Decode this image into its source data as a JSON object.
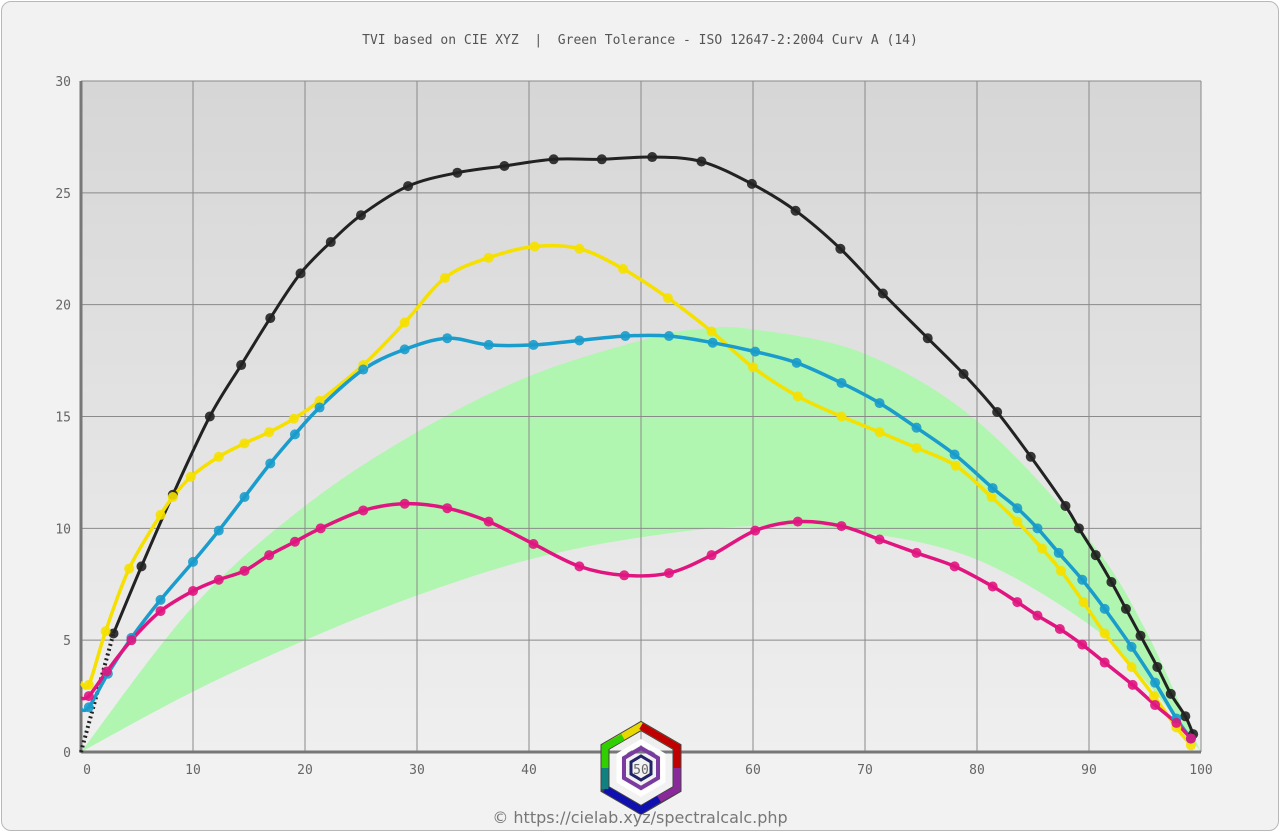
{
  "title": "TVI based on CIE XYZ  |  Green Tolerance - ISO 12647-2:2004 Curv A (14)",
  "credit": "© https://cielab.xyz/spectralcalc.php",
  "logo_text": "50",
  "chart_data": {
    "type": "line",
    "title": "TVI based on CIE XYZ  |  Green Tolerance - ISO 12647-2:2004 Curv A (14)",
    "xlabel": "",
    "ylabel": "",
    "xlim": [
      0,
      100
    ],
    "ylim": [
      0,
      30
    ],
    "xticks": [
      "0",
      "10",
      "20",
      "30",
      "40",
      "50",
      "60",
      "70",
      "80",
      "90",
      "100"
    ],
    "yticks": [
      "0",
      "5",
      "10",
      "15",
      "20",
      "25",
      "30"
    ],
    "grid": true,
    "tolerance_band": {
      "color": "#b0f5b0",
      "upper": [
        [
          0,
          0
        ],
        [
          10,
          6.5
        ],
        [
          20,
          11
        ],
        [
          30,
          14.3
        ],
        [
          40,
          16.8
        ],
        [
          50,
          18.4
        ],
        [
          55,
          18.9
        ],
        [
          60,
          18.9
        ],
        [
          70,
          17.8
        ],
        [
          80,
          14.8
        ],
        [
          90,
          9.5
        ],
        [
          95,
          5.5
        ],
        [
          100,
          0
        ]
      ],
      "lower": [
        [
          0,
          0
        ],
        [
          10,
          2.7
        ],
        [
          20,
          5.0
        ],
        [
          30,
          7.0
        ],
        [
          40,
          8.6
        ],
        [
          50,
          9.6
        ],
        [
          60,
          10.1
        ],
        [
          70,
          9.8
        ],
        [
          80,
          8.6
        ],
        [
          90,
          5.7
        ],
        [
          95,
          3.2
        ],
        [
          100,
          0
        ]
      ]
    },
    "series": [
      {
        "name": "black",
        "color": "#222222",
        "line_start": [
          0,
          0
        ],
        "points": [
          [
            2.9,
            5.3
          ],
          [
            5.4,
            8.3
          ],
          [
            8.2,
            11.5
          ],
          [
            11.5,
            15.0
          ],
          [
            14.3,
            17.3
          ],
          [
            16.9,
            19.4
          ],
          [
            19.6,
            21.4
          ],
          [
            22.3,
            22.8
          ],
          [
            25,
            24.0
          ],
          [
            29.2,
            25.3
          ],
          [
            33.6,
            25.9
          ],
          [
            37.8,
            26.2
          ],
          [
            42.2,
            26.5
          ],
          [
            46.5,
            26.5
          ],
          [
            51,
            26.6
          ],
          [
            55.4,
            26.4
          ],
          [
            59.9,
            25.4
          ],
          [
            63.8,
            24.2
          ],
          [
            67.8,
            22.5
          ],
          [
            71.6,
            20.5
          ],
          [
            75.6,
            18.5
          ],
          [
            78.8,
            16.9
          ],
          [
            81.8,
            15.2
          ],
          [
            84.8,
            13.2
          ],
          [
            87.9,
            11.0
          ],
          [
            89.1,
            10.0
          ],
          [
            90.6,
            8.8
          ],
          [
            92,
            7.6
          ],
          [
            93.3,
            6.4
          ],
          [
            94.6,
            5.2
          ],
          [
            96.1,
            3.8
          ],
          [
            97.3,
            2.6
          ],
          [
            98.6,
            1.6
          ],
          [
            99.3,
            0.8
          ]
        ]
      },
      {
        "name": "yellow",
        "color": "#f5e000",
        "line_start": [
          0,
          3.1
        ],
        "points": [
          [
            0.7,
            3.0
          ],
          [
            2.2,
            5.4
          ],
          [
            4.3,
            8.2
          ],
          [
            7.1,
            10.6
          ],
          [
            8.2,
            11.4
          ],
          [
            9.8,
            12.3
          ],
          [
            12.3,
            13.2
          ],
          [
            14.6,
            13.8
          ],
          [
            16.8,
            14.3
          ],
          [
            19,
            14.9
          ],
          [
            21.3,
            15.7
          ],
          [
            25.2,
            17.3
          ],
          [
            28.9,
            19.2
          ],
          [
            32.5,
            21.2
          ],
          [
            36.4,
            22.1
          ],
          [
            40.5,
            22.6
          ],
          [
            44.5,
            22.5
          ],
          [
            48.4,
            21.6
          ],
          [
            52.4,
            20.3
          ],
          [
            56.3,
            18.8
          ],
          [
            60,
            17.2
          ],
          [
            64,
            15.9
          ],
          [
            67.9,
            15.0
          ],
          [
            71.3,
            14.3
          ],
          [
            74.6,
            13.6
          ],
          [
            78.1,
            12.8
          ],
          [
            81.3,
            11.4
          ],
          [
            83.6,
            10.3
          ],
          [
            85.8,
            9.1
          ],
          [
            87.5,
            8.1
          ],
          [
            89.5,
            6.7
          ],
          [
            91.4,
            5.3
          ],
          [
            93.8,
            3.8
          ],
          [
            95.8,
            2.5
          ],
          [
            97.8,
            1.1
          ],
          [
            99.1,
            0.3
          ]
        ]
      },
      {
        "name": "cyan",
        "color": "#1a9ccc",
        "line_start": [
          0,
          1.9
        ],
        "points": [
          [
            0.7,
            2.0
          ],
          [
            2.4,
            3.5
          ],
          [
            4.5,
            5.1
          ],
          [
            7.1,
            6.8
          ],
          [
            10,
            8.5
          ],
          [
            12.3,
            9.9
          ],
          [
            14.6,
            11.4
          ],
          [
            16.9,
            12.9
          ],
          [
            19.1,
            14.2
          ],
          [
            21.3,
            15.4
          ],
          [
            25.2,
            17.1
          ],
          [
            28.9,
            18.0
          ],
          [
            32.7,
            18.5
          ],
          [
            36.4,
            18.2
          ],
          [
            40.4,
            18.2
          ],
          [
            44.5,
            18.4
          ],
          [
            48.6,
            18.6
          ],
          [
            52.5,
            18.6
          ],
          [
            56.4,
            18.3
          ],
          [
            60.2,
            17.9
          ],
          [
            63.9,
            17.4
          ],
          [
            67.9,
            16.5
          ],
          [
            71.3,
            15.6
          ],
          [
            74.6,
            14.5
          ],
          [
            78,
            13.3
          ],
          [
            81.4,
            11.8
          ],
          [
            83.6,
            10.9
          ],
          [
            85.4,
            10.0
          ],
          [
            87.3,
            8.9
          ],
          [
            89.4,
            7.7
          ],
          [
            91.4,
            6.4
          ],
          [
            93.8,
            4.7
          ],
          [
            95.9,
            3.1
          ],
          [
            97.8,
            1.5
          ],
          [
            99.1,
            0.6
          ]
        ]
      },
      {
        "name": "magenta",
        "color": "#e0157f",
        "line_start": [
          0,
          2.4
        ],
        "points": [
          [
            0.7,
            2.5
          ],
          [
            2.3,
            3.6
          ],
          [
            4.5,
            5.0
          ],
          [
            7.1,
            6.3
          ],
          [
            10,
            7.2
          ],
          [
            12.3,
            7.7
          ],
          [
            14.6,
            8.1
          ],
          [
            16.8,
            8.8
          ],
          [
            19.1,
            9.4
          ],
          [
            21.4,
            10.0
          ],
          [
            25.2,
            10.8
          ],
          [
            28.9,
            11.1
          ],
          [
            32.7,
            10.9
          ],
          [
            36.4,
            10.3
          ],
          [
            40.4,
            9.3
          ],
          [
            44.5,
            8.3
          ],
          [
            48.5,
            7.9
          ],
          [
            52.5,
            8.0
          ],
          [
            56.3,
            8.8
          ],
          [
            60.2,
            9.9
          ],
          [
            64,
            10.3
          ],
          [
            67.9,
            10.1
          ],
          [
            71.3,
            9.5
          ],
          [
            74.6,
            8.9
          ],
          [
            78,
            8.3
          ],
          [
            81.4,
            7.4
          ],
          [
            83.6,
            6.7
          ],
          [
            85.4,
            6.1
          ],
          [
            87.4,
            5.5
          ],
          [
            89.4,
            4.8
          ],
          [
            91.4,
            4.0
          ],
          [
            93.9,
            3.0
          ],
          [
            95.9,
            2.1
          ],
          [
            97.8,
            1.3
          ],
          [
            99.1,
            0.6
          ]
        ]
      }
    ]
  }
}
